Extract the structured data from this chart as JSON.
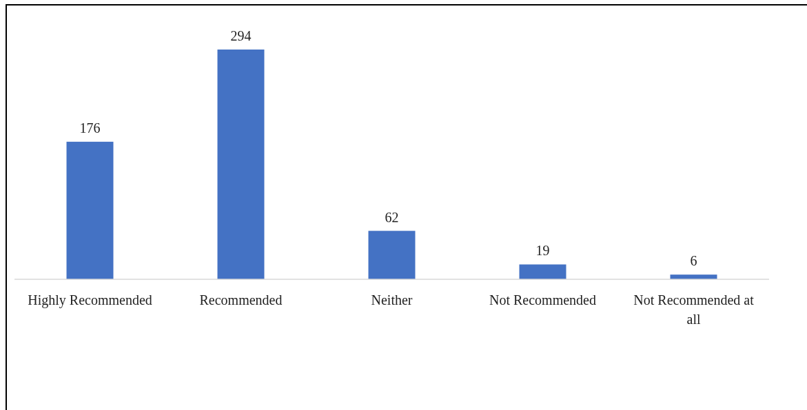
{
  "chart_data": {
    "type": "bar",
    "categories": [
      "Highly Recommended",
      "Recommended",
      "Neither",
      "Not Recommended",
      "Not Recommended at all"
    ],
    "values": [
      176,
      294,
      62,
      19,
      6
    ],
    "color": "#4472c4",
    "data_labels": true
  }
}
